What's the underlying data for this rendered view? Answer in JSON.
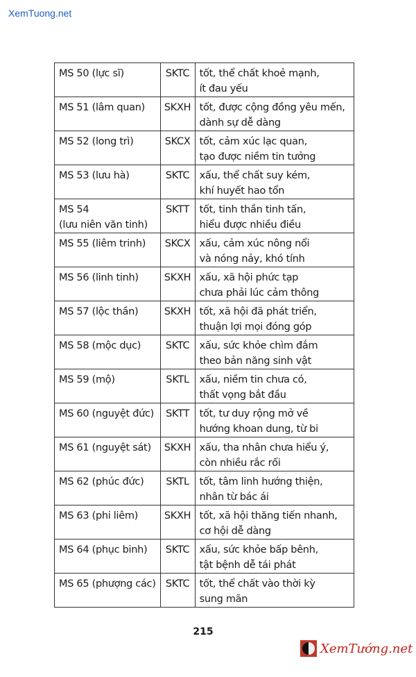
{
  "watermark": "XemTuong.net",
  "rows": [
    {
      "name": [
        "MS 50 (lực sĩ)"
      ],
      "code": "SKTC",
      "desc": [
        "tốt, thể chất khoẻ mạnh,",
        "ít đau yếu"
      ]
    },
    {
      "name": [
        "MS 51 (lâm quan)"
      ],
      "code": "SKXH",
      "desc": [
        "tốt, được cộng đồng yêu mến,",
        "dành sự dễ dàng"
      ]
    },
    {
      "name": [
        "MS 52 (long trì)"
      ],
      "code": "SKCX",
      "desc": [
        "tốt, cảm xúc lạc quan,",
        "tạo được niềm tin tưởng"
      ]
    },
    {
      "name": [
        "MS 53 (lưu hà)"
      ],
      "code": "SKTC",
      "desc": [
        "xấu, thể chất suy kém,",
        "khí huyết hao tổn"
      ]
    },
    {
      "name": [
        "MS 54",
        "(lưu niên văn tinh)"
      ],
      "code": "SKTT",
      "desc": [
        "tốt, tinh thần tinh tấn,",
        "hiểu được nhiều điều"
      ]
    },
    {
      "name": [
        "MS 55 (liêm trinh)"
      ],
      "code": "SKCX",
      "desc": [
        "xấu, cảm xúc nông nổi",
        "và nóng nảy, khó tính"
      ]
    },
    {
      "name": [
        "MS 56 (linh tinh)"
      ],
      "code": "SKXH",
      "desc": [
        "xấu, xã hội phức tạp",
        "chưa phải lúc cảm thông"
      ]
    },
    {
      "name": [
        "MS 57 (lộc thần)"
      ],
      "code": "SKXH",
      "desc": [
        "tốt, xã hội đã phát triển,",
        "thuận lợi mọi đóng góp"
      ]
    },
    {
      "name": [
        "MS 58 (mộc dục)"
      ],
      "code": "SKTC",
      "desc": [
        "xấu, sức khỏe chìm đắm",
        "theo bản năng sinh vật"
      ]
    },
    {
      "name": [
        "MS 59 (mộ)"
      ],
      "code": "SKTL",
      "desc": [
        "xấu, niềm tin chưa có,",
        "thất vọng bắt đầu"
      ]
    },
    {
      "name": [
        "MS 60 (nguyệt đức)"
      ],
      "code": "SKTT",
      "desc": [
        "tốt, tư duy rộng mở về",
        "hướng khoan dung, từ bi"
      ]
    },
    {
      "name": [
        "MS 61 (nguyệt sát)"
      ],
      "code": "SKXH",
      "desc": [
        "xấu, tha nhân chưa hiểu ý,",
        "còn nhiều rắc rối"
      ]
    },
    {
      "name": [
        "MS 62 (phúc đức)"
      ],
      "code": "SKTL",
      "desc": [
        "tốt, tâm linh hướng thiện,",
        "nhân từ bác ái"
      ]
    },
    {
      "name": [
        "MS 63 (phi liêm)"
      ],
      "code": "SKXH",
      "desc": [
        "tốt, xã hội thăng tiến nhanh,",
        "cơ hội dễ dàng"
      ]
    },
    {
      "name": [
        "MS 64 (phục binh)"
      ],
      "code": "SKTC",
      "desc": [
        "xấu, sức khỏe bấp bênh,",
        "tật bệnh dễ tái phát"
      ]
    },
    {
      "name": [
        "MS 65 (phượng các)"
      ],
      "code": "SKTC",
      "desc": [
        "tốt, thể chất vào thời kỳ",
        "sung mãn"
      ]
    }
  ],
  "page_number": "215",
  "logo": {
    "text": "XemTướng.net",
    "icon": "yin-yang-icon",
    "color": "#c0221b"
  }
}
